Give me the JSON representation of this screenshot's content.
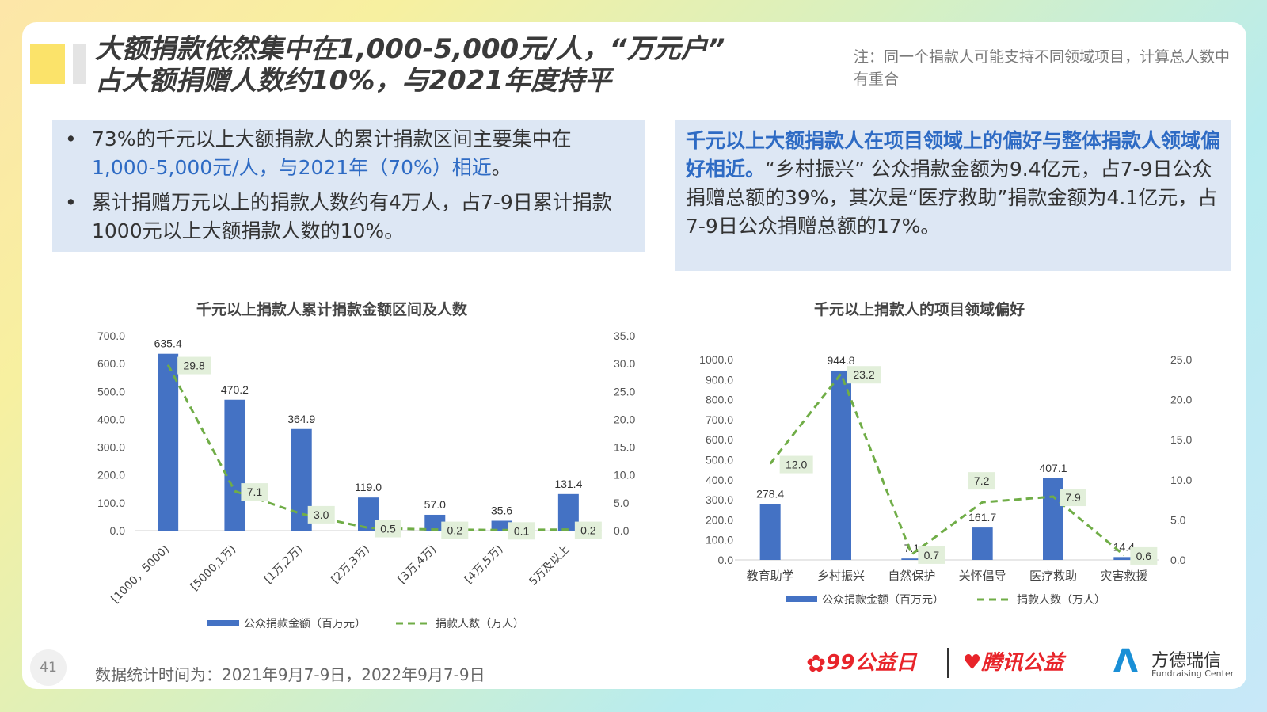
{
  "title": {
    "line1": "大额捐款依然集中在1,000-5,000元/人，“万元户”",
    "line2": "占大额捐赠人数约10%，与2021年度持平"
  },
  "note": "注：同一个捐款人可能支持不同领域项目，计算总人数中有重合",
  "left_box": {
    "bullet": "•",
    "b1_part1": "73%的千元以上大额捐款人的累计捐款区间主要集中在",
    "b1_highlight": "1,000-5,000元/人，与2021年（70%）相近",
    "b1_part2": "。",
    "b2": "累计捐赠万元以上的捐款人数约有4万人，占7-9日累计捐款1000元以上大额捐款人数的10%。"
  },
  "right_box": {
    "highlight": "千元以上大额捐款人在项目领域上的偏好与整体捐款人领域偏好相近。",
    "text": "“乡村振兴” 公众捐款金额为9.4亿元，占7-9日公众捐赠总额的39%，其次是“医疗救助”捐款金额为4.1亿元，占7-9日公众捐赠总额的17%。"
  },
  "chart_data": [
    {
      "type": "bar",
      "title": "千元以上捐款人累计捐款金额区间及人数",
      "categories": [
        "[1000，5000)",
        "[5000,1万)",
        "[1万,2万)",
        "[2万,3万)",
        "[3万,4万)",
        "[4万,5万)",
        "5万及以上"
      ],
      "series": [
        {
          "name": "公众捐款金额（百万元）",
          "type": "bar",
          "axis": "left",
          "values": [
            635.4,
            470.2,
            364.9,
            119.0,
            57.0,
            35.6,
            131.4
          ]
        },
        {
          "name": "捐款人数（万人）",
          "type": "line",
          "axis": "right",
          "values": [
            29.8,
            7.1,
            3.0,
            0.5,
            0.2,
            0.1,
            0.2
          ]
        }
      ],
      "y_left_ticks": [
        "0.0",
        "100.0",
        "200.0",
        "300.0",
        "400.0",
        "500.0",
        "600.0",
        "700.0"
      ],
      "y_right_ticks": [
        "0.0",
        "5.0",
        "10.0",
        "15.0",
        "20.0",
        "25.0",
        "30.0",
        "35.0"
      ],
      "ylim_left": [
        0,
        700
      ],
      "ylim_right": [
        0,
        35
      ],
      "bar_labels": [
        "635.4",
        "470.2",
        "364.9",
        "119.0",
        "57.0",
        "35.6",
        "131.4"
      ],
      "line_labels": [
        "29.8",
        "7.1",
        "3.0",
        "0.5",
        "0.2",
        "0.1",
        "0.2"
      ],
      "legend_position": "bottom",
      "colors": {
        "bar": "#4472c4",
        "line": "#70ad47",
        "label_bg": "#e2efda"
      }
    },
    {
      "type": "bar",
      "title": "千元以上捐款人的项目领域偏好",
      "categories": [
        "教育助学",
        "乡村振兴",
        "自然保护",
        "关怀倡导",
        "医疗救助",
        "灾害救援"
      ],
      "series": [
        {
          "name": "公众捐款金额（百万元）",
          "type": "bar",
          "axis": "left",
          "values": [
            278.4,
            944.8,
            7.1,
            161.7,
            407.1,
            14.4
          ]
        },
        {
          "name": "捐款人数（万人）",
          "type": "line",
          "axis": "right",
          "values": [
            12.0,
            23.2,
            0.7,
            7.2,
            7.9,
            0.6
          ]
        }
      ],
      "y_left_ticks": [
        "0.0",
        "100.0",
        "200.0",
        "300.0",
        "400.0",
        "500.0",
        "600.0",
        "700.0",
        "800.0",
        "900.0",
        "1000.0"
      ],
      "y_right_ticks": [
        "0.0",
        "5.0",
        "10.0",
        "15.0",
        "20.0",
        "25.0"
      ],
      "ylim_left": [
        0,
        1000
      ],
      "ylim_right": [
        0,
        25
      ],
      "bar_labels": [
        "278.4",
        "944.8",
        "7.1",
        "161.7",
        "407.1",
        "14.4"
      ],
      "line_labels": [
        "12.0",
        "23.2",
        "0.7",
        "7.2",
        "7.9",
        "0.6"
      ],
      "legend_position": "bottom",
      "colors": {
        "bar": "#4472c4",
        "line": "#70ad47",
        "label_bg": "#e2efda"
      }
    }
  ],
  "footer": {
    "page_number": "41",
    "source_note": "数据统计时间为：2021年9月7-9日，2022年9月7-9日",
    "logo_99": "99公益日",
    "logo_tencent": "腾讯公益",
    "logo_fd_cn": "方德瑞信",
    "logo_fd_en": "Fundraising Center"
  }
}
